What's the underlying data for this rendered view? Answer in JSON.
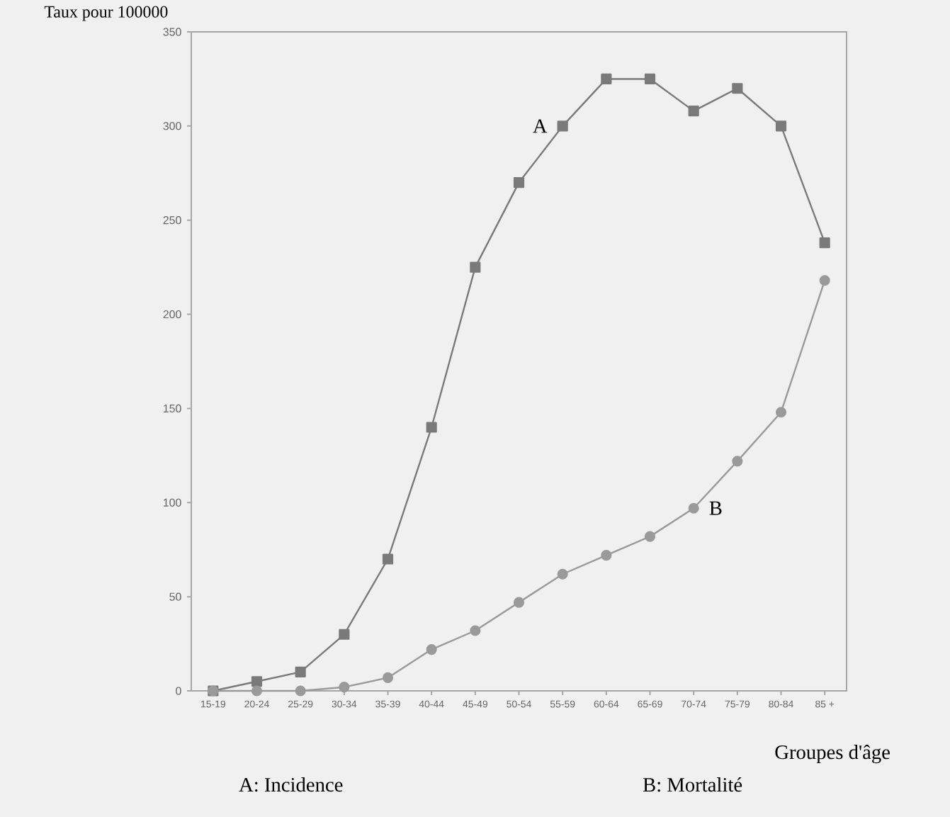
{
  "chart_data": {
    "type": "line",
    "ylabel": "Taux pour 100000",
    "xlabel": "Groupes d'âge",
    "categories": [
      "15-19",
      "20-24",
      "25-29",
      "30-34",
      "35-39",
      "40-44",
      "45-49",
      "50-54",
      "55-59",
      "60-64",
      "65-69",
      "70-74",
      "75-79",
      "80-84",
      "85 +"
    ],
    "ylim": [
      0,
      350
    ],
    "yticks": [
      0,
      50,
      100,
      150,
      200,
      250,
      300,
      350
    ],
    "grid": false,
    "series": [
      {
        "name": "A",
        "color": "#7a7a7a",
        "marker": "square",
        "values": [
          0,
          5,
          10,
          30,
          70,
          140,
          225,
          270,
          300,
          325,
          325,
          308,
          320,
          300,
          238
        ]
      },
      {
        "name": "B",
        "color": "#9a9a9a",
        "marker": "circle",
        "values": [
          0,
          0,
          0,
          2,
          7,
          22,
          32,
          47,
          62,
          72,
          82,
          97,
          122,
          148,
          218
        ]
      }
    ],
    "annotations": [
      "A: Incidence",
      "B: Mortalité"
    ]
  }
}
